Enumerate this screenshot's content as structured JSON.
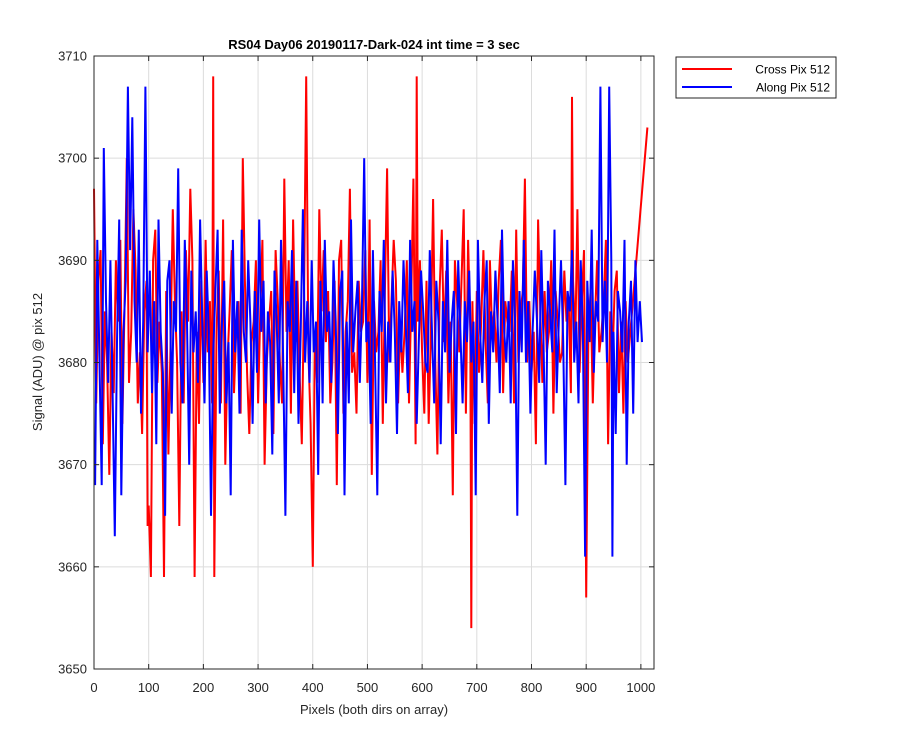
{
  "chart_data": {
    "type": "line",
    "title": "RS04 Day06 20190117-Dark-024 int time = 3 sec",
    "xlabel": "Pixels (both dirs on array)",
    "ylabel": "Signal (ADU) @ pix 512",
    "xlim": [
      0,
      1024
    ],
    "ylim": [
      3650,
      3710
    ],
    "xticks": [
      0,
      100,
      200,
      300,
      400,
      500,
      600,
      700,
      800,
      900,
      1000
    ],
    "yticks": [
      3650,
      3660,
      3670,
      3680,
      3690,
      3700,
      3710
    ],
    "grid": true,
    "legend_position": "outside-top-right",
    "sample_step": 4,
    "series": [
      {
        "name": "Cross Pix 512",
        "color": "#ff0000",
        "x_start": 0,
        "values": [
          3697,
          3676,
          3688,
          3691,
          3672,
          3685,
          3680,
          3669,
          3683,
          3677,
          3690,
          3684,
          3692,
          3674,
          3686,
          3700,
          3678,
          3683,
          3695,
          3689,
          3676,
          3681,
          3673,
          3685,
          3688,
          3666,
          3681,
          3690,
          3693,
          3678,
          3684,
          3679,
          3674,
          3687,
          3671,
          3682,
          3695,
          3686,
          3680,
          3664,
          3685,
          3676,
          3691,
          3684,
          3697,
          3690,
          3659,
          3683,
          3674,
          3688,
          3678,
          3692,
          3681,
          3686,
          3676,
          3659,
          3683,
          3689,
          3676,
          3694,
          3670,
          3680,
          3685,
          3691,
          3677,
          3683,
          3686,
          3675,
          3700,
          3688,
          3679,
          3673,
          3682,
          3684,
          3690,
          3676,
          3685,
          3692,
          3670,
          3680,
          3684,
          3687,
          3673,
          3691,
          3686,
          3680,
          3676,
          3698,
          3683,
          3690,
          3675,
          3694,
          3682,
          3688,
          3679,
          3672,
          3686,
          3708,
          3681,
          3674,
          3689,
          3683,
          3678,
          3695,
          3685,
          3691,
          3682,
          3687,
          3676,
          3680,
          3688,
          3668,
          3690,
          3692,
          3675,
          3683,
          3686,
          3697,
          3679,
          3681,
          3675,
          3688,
          3683,
          3684,
          3691,
          3678,
          3694,
          3669,
          3686,
          3681,
          3683,
          3690,
          3674,
          3687,
          3699,
          3680,
          3686,
          3692,
          3688,
          3676,
          3684,
          3679,
          3683,
          3690,
          3676,
          3686,
          3698,
          3672,
          3684,
          3690,
          3681,
          3675,
          3688,
          3674,
          3683,
          3696,
          3680,
          3671,
          3687,
          3693,
          3682,
          3689,
          3676,
          3684,
          3667,
          3690,
          3686,
          3681,
          3688,
          3695,
          3675,
          3692,
          3683,
          3686,
          3674,
          3687,
          3679,
          3684,
          3691,
          3682,
          3676,
          3690,
          3683,
          3685,
          3680,
          3688,
          3692,
          3677,
          3686,
          3684,
          3683,
          3689,
          3676,
          3693,
          3680,
          3685,
          3687,
          3698,
          3680,
          3686,
          3679,
          3683,
          3672,
          3694,
          3685,
          3678,
          3687,
          3681,
          3683,
          3690,
          3675,
          3687,
          3684,
          3680,
          3681,
          3689,
          3684,
          3686,
          3677,
          3688,
          3682,
          3695,
          3679,
          3686,
          3691,
          3674,
          3683,
          3687,
          3676,
          3684,
          3690,
          3681,
          3683,
          3686,
          3692,
          3672,
          3685,
          3680,
          3687,
          3689,
          3677,
          3684,
          3675,
          3686,
          3680
        ],
        "extremes": [
          {
            "x": 0,
            "y": 3697
          },
          {
            "x": 60,
            "y": 3700
          },
          {
            "x": 98,
            "y": 3664
          },
          {
            "x": 104,
            "y": 3659
          },
          {
            "x": 128,
            "y": 3659
          },
          {
            "x": 218,
            "y": 3708
          },
          {
            "x": 400,
            "y": 3660
          },
          {
            "x": 590,
            "y": 3708
          },
          {
            "x": 690,
            "y": 3654
          },
          {
            "x": 874,
            "y": 3706
          },
          {
            "x": 900,
            "y": 3657
          },
          {
            "x": 1012,
            "y": 3703
          }
        ]
      },
      {
        "name": "Along Pix 512",
        "color": "#0000ff",
        "x_start": 2,
        "values": [
          3668,
          3692,
          3680,
          3673,
          3701,
          3686,
          3678,
          3690,
          3677,
          3685,
          3682,
          3694,
          3667,
          3683,
          3688,
          3676,
          3691,
          3663,
          3686,
          3680,
          3693,
          3675,
          3684,
          3707,
          3681,
          3689,
          3677,
          3686,
          3672,
          3694,
          3683,
          3679,
          3665,
          3688,
          3690,
          3675,
          3686,
          3683,
          3699,
          3680,
          3676,
          3692,
          3684,
          3670,
          3689,
          3681,
          3685,
          3678,
          3694,
          3684,
          3676,
          3689,
          3683,
          3665,
          3681,
          3687,
          3693,
          3675,
          3684,
          3688,
          3676,
          3682,
          3667,
          3692,
          3681,
          3686,
          3675,
          3693,
          3683,
          3680,
          3690,
          3684,
          3674,
          3687,
          3679,
          3694,
          3683,
          3688,
          3676,
          3685,
          3682,
          3671,
          3689,
          3684,
          3676,
          3692,
          3680,
          3665,
          3686,
          3683,
          3691,
          3677,
          3688,
          3674,
          3683,
          3695,
          3680,
          3686,
          3678,
          3690,
          3681,
          3684,
          3669,
          3688,
          3676,
          3692,
          3683,
          3685,
          3678,
          3690,
          3684,
          3673,
          3687,
          3689,
          3667,
          3684,
          3676,
          3694,
          3681,
          3685,
          3688,
          3678,
          3686,
          3700,
          3682,
          3684,
          3674,
          3691,
          3680,
          3667,
          3687,
          3683,
          3692,
          3676,
          3684,
          3680,
          3689,
          3683,
          3673,
          3686,
          3681,
          3690,
          3684,
          3677,
          3692,
          3683,
          3686,
          3674,
          3682,
          3689,
          3685,
          3680,
          3679,
          3691,
          3683,
          3676,
          3688,
          3684,
          3672,
          3686,
          3681,
          3692,
          3679,
          3684,
          3687,
          3673,
          3690,
          3683,
          3676,
          3686,
          3682,
          3689,
          3680,
          3684,
          3667,
          3692,
          3683,
          3678,
          3686,
          3690,
          3674,
          3685,
          3681,
          3689,
          3684,
          3677,
          3693,
          3683,
          3680,
          3686,
          3676,
          3690,
          3684,
          3665,
          3687,
          3681,
          3692,
          3680,
          3686,
          3675,
          3683,
          3689,
          3684,
          3678,
          3691,
          3682,
          3670,
          3688,
          3685,
          3681,
          3693,
          3677,
          3684,
          3690,
          3682,
          3668,
          3687,
          3685,
          3691,
          3680,
          3684,
          3676,
          3690,
          3683,
          3661,
          3688,
          3682,
          3693,
          3679,
          3686,
          3684,
          3707,
          3682,
          3688,
          3680,
          3676,
          3690,
          3683,
          3673,
          3687,
          3685,
          3681,
          3692,
          3670,
          3684,
          3688,
          3675,
          3690,
          3682,
          3686,
          3682
        ],
        "extremes": [
          {
            "x": 14,
            "y": 3668
          },
          {
            "x": 38,
            "y": 3663
          },
          {
            "x": 62,
            "y": 3707
          },
          {
            "x": 70,
            "y": 3704
          },
          {
            "x": 942,
            "y": 3707
          },
          {
            "x": 948,
            "y": 3661
          }
        ]
      }
    ]
  }
}
